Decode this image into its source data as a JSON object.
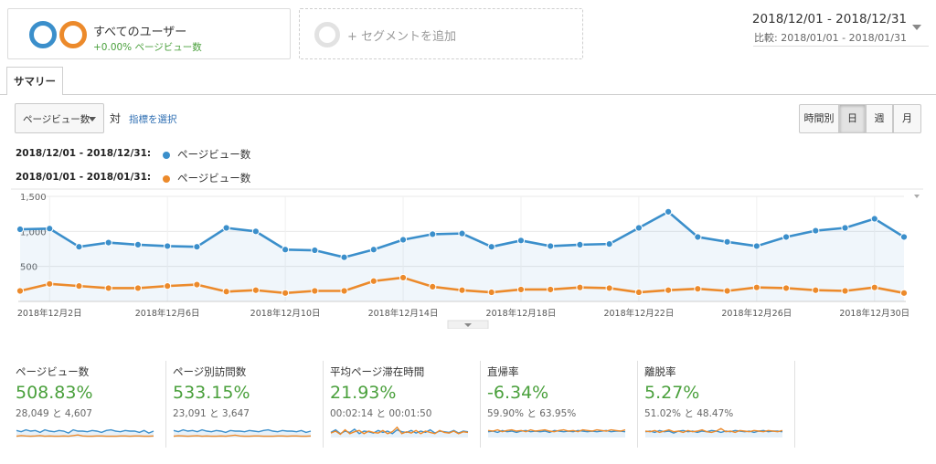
{
  "segments": {
    "primary_name": "すべてのユーザー",
    "primary_sub": "+0.00% ページビュー数",
    "add_label": "+ セグメントを追加"
  },
  "date_range": {
    "main": "2018/12/01 - 2018/12/31",
    "compare": "比較: 2018/01/01 - 2018/01/31"
  },
  "tabs": {
    "summary": "サマリー"
  },
  "controls": {
    "metric": "ページビュー数",
    "vs": "対",
    "choose_metric": "指標を選択",
    "granularity": [
      "時間別",
      "日",
      "週",
      "月"
    ],
    "selected_granularity": "日"
  },
  "legend": [
    {
      "range": "2018/12/01 - 2018/12/31:",
      "metric": "ページビュー数",
      "color": "#3b8fcb"
    },
    {
      "range": "2018/01/01 - 2018/01/31:",
      "metric": "ページビュー数",
      "color": "#ec8a2b"
    }
  ],
  "chart_data": {
    "type": "area",
    "x": [
      1,
      2,
      3,
      4,
      5,
      6,
      7,
      8,
      9,
      10,
      11,
      12,
      13,
      14,
      15,
      16,
      17,
      18,
      19,
      20,
      21,
      22,
      23,
      24,
      25,
      26,
      27,
      28,
      29,
      30,
      31
    ],
    "x_tick_labels": [
      "2018年12月2日",
      "2018年12月6日",
      "2018年12月10日",
      "2018年12月14日",
      "2018年12月18日",
      "2018年12月22日",
      "2018年12月26日",
      "2018年12月30日"
    ],
    "x_tick_positions": [
      2,
      6,
      10,
      14,
      18,
      22,
      26,
      30
    ],
    "y_tick_labels": [
      "1,500",
      "1,000",
      "500"
    ],
    "y_ticks": [
      1500,
      1000,
      500
    ],
    "ylim": [
      0,
      1500
    ],
    "series": [
      {
        "name": "2018/12/01 - 2018/12/31: ページビュー数",
        "color": "#3b8fcb",
        "values": [
          1030,
          1040,
          780,
          840,
          810,
          790,
          780,
          1050,
          1000,
          740,
          730,
          630,
          740,
          880,
          960,
          970,
          780,
          870,
          790,
          810,
          820,
          1050,
          1280,
          920,
          850,
          790,
          920,
          1010,
          1050,
          1180,
          920
        ]
      },
      {
        "name": "2018/01/01 - 2018/01/31: ページビュー数",
        "color": "#ec8a2b",
        "values": [
          150,
          250,
          220,
          190,
          190,
          220,
          240,
          140,
          160,
          120,
          150,
          150,
          290,
          340,
          210,
          160,
          130,
          170,
          170,
          200,
          190,
          130,
          160,
          180,
          150,
          200,
          190,
          160,
          150,
          200,
          120
        ]
      }
    ]
  },
  "scorecards": [
    {
      "title": "ページビュー数",
      "value": "508.83%",
      "sub": "28,049 と 4,607"
    },
    {
      "title": "ページ別訪問数",
      "value": "533.15%",
      "sub": "23,091 と 3,647"
    },
    {
      "title": "平均ページ滞在時間",
      "value": "21.93%",
      "sub": "00:02:14 と 00:01:50"
    },
    {
      "title": "直帰率",
      "value": "-6.34%",
      "sub": "59.90% と 63.95%"
    },
    {
      "title": "離脱率",
      "value": "5.27%",
      "sub": "51.02% と 48.47%"
    }
  ],
  "sparklines": [
    {
      "blue": [
        0.55,
        0.45,
        0.6,
        0.5,
        0.55,
        0.4,
        0.6,
        0.5,
        0.45,
        0.55,
        0.5,
        0.35,
        0.6,
        0.5,
        0.5,
        0.45,
        0.55,
        0.5,
        0.4,
        0.55,
        0.6,
        0.5,
        0.45,
        0.55,
        0.5,
        0.5,
        0.4,
        0.55,
        0.35,
        0.5
      ],
      "orange": [
        0.1,
        0.15,
        0.12,
        0.1,
        0.12,
        0.15,
        0.1,
        0.12,
        0.1,
        0.1,
        0.12,
        0.1,
        0.15,
        0.2,
        0.12,
        0.1,
        0.1,
        0.12,
        0.12,
        0.1,
        0.1,
        0.1,
        0.12,
        0.12,
        0.1,
        0.12,
        0.12,
        0.1,
        0.1,
        0.12
      ]
    },
    {
      "blue": [
        0.55,
        0.45,
        0.6,
        0.5,
        0.55,
        0.45,
        0.6,
        0.5,
        0.45,
        0.55,
        0.5,
        0.4,
        0.55,
        0.5,
        0.5,
        0.45,
        0.55,
        0.5,
        0.45,
        0.55,
        0.6,
        0.5,
        0.45,
        0.55,
        0.5,
        0.5,
        0.45,
        0.55,
        0.4,
        0.5
      ],
      "orange": [
        0.1,
        0.14,
        0.12,
        0.1,
        0.12,
        0.14,
        0.1,
        0.12,
        0.1,
        0.1,
        0.12,
        0.1,
        0.14,
        0.18,
        0.12,
        0.1,
        0.1,
        0.12,
        0.12,
        0.1,
        0.1,
        0.1,
        0.12,
        0.12,
        0.1,
        0.12,
        0.12,
        0.1,
        0.1,
        0.12
      ]
    },
    {
      "blue": [
        0.4,
        0.6,
        0.3,
        0.5,
        0.4,
        0.65,
        0.3,
        0.5,
        0.45,
        0.35,
        0.55,
        0.4,
        0.5,
        0.3,
        0.6,
        0.45,
        0.4,
        0.55,
        0.35,
        0.5,
        0.4,
        0.6,
        0.35,
        0.5,
        0.45,
        0.4,
        0.55,
        0.35,
        0.5,
        0.45
      ],
      "orange": [
        0.35,
        0.5,
        0.25,
        0.6,
        0.3,
        0.45,
        0.55,
        0.3,
        0.5,
        0.4,
        0.35,
        0.55,
        0.3,
        0.45,
        0.8,
        0.3,
        0.45,
        0.35,
        0.55,
        0.3,
        0.5,
        0.4,
        0.3,
        0.55,
        0.4,
        0.35,
        0.5,
        0.3,
        0.45,
        0.4
      ]
    },
    {
      "blue": [
        0.45,
        0.5,
        0.4,
        0.55,
        0.45,
        0.5,
        0.4,
        0.5,
        0.55,
        0.45,
        0.5,
        0.45,
        0.5,
        0.4,
        0.55,
        0.5,
        0.45,
        0.5,
        0.45,
        0.55,
        0.5,
        0.45,
        0.5,
        0.45,
        0.5,
        0.55,
        0.45,
        0.5,
        0.5,
        0.45
      ],
      "orange": [
        0.55,
        0.5,
        0.6,
        0.45,
        0.55,
        0.6,
        0.5,
        0.55,
        0.45,
        0.6,
        0.5,
        0.55,
        0.6,
        0.5,
        0.45,
        0.55,
        0.6,
        0.5,
        0.55,
        0.45,
        0.6,
        0.55,
        0.5,
        0.6,
        0.55,
        0.5,
        0.6,
        0.55,
        0.5,
        0.6
      ]
    },
    {
      "blue": [
        0.45,
        0.5,
        0.4,
        0.55,
        0.45,
        0.5,
        0.35,
        0.5,
        0.55,
        0.45,
        0.5,
        0.4,
        0.5,
        0.45,
        0.55,
        0.5,
        0.4,
        0.5,
        0.45,
        0.55,
        0.5,
        0.45,
        0.5,
        0.4,
        0.5,
        0.55,
        0.45,
        0.5,
        0.5,
        0.45
      ],
      "orange": [
        0.5,
        0.45,
        0.55,
        0.4,
        0.5,
        0.6,
        0.45,
        0.5,
        0.4,
        0.55,
        0.45,
        0.5,
        0.6,
        0.45,
        0.4,
        0.5,
        0.7,
        0.45,
        0.5,
        0.4,
        0.55,
        0.5,
        0.45,
        0.55,
        0.5,
        0.45,
        0.55,
        0.5,
        0.45,
        0.55
      ]
    }
  ]
}
